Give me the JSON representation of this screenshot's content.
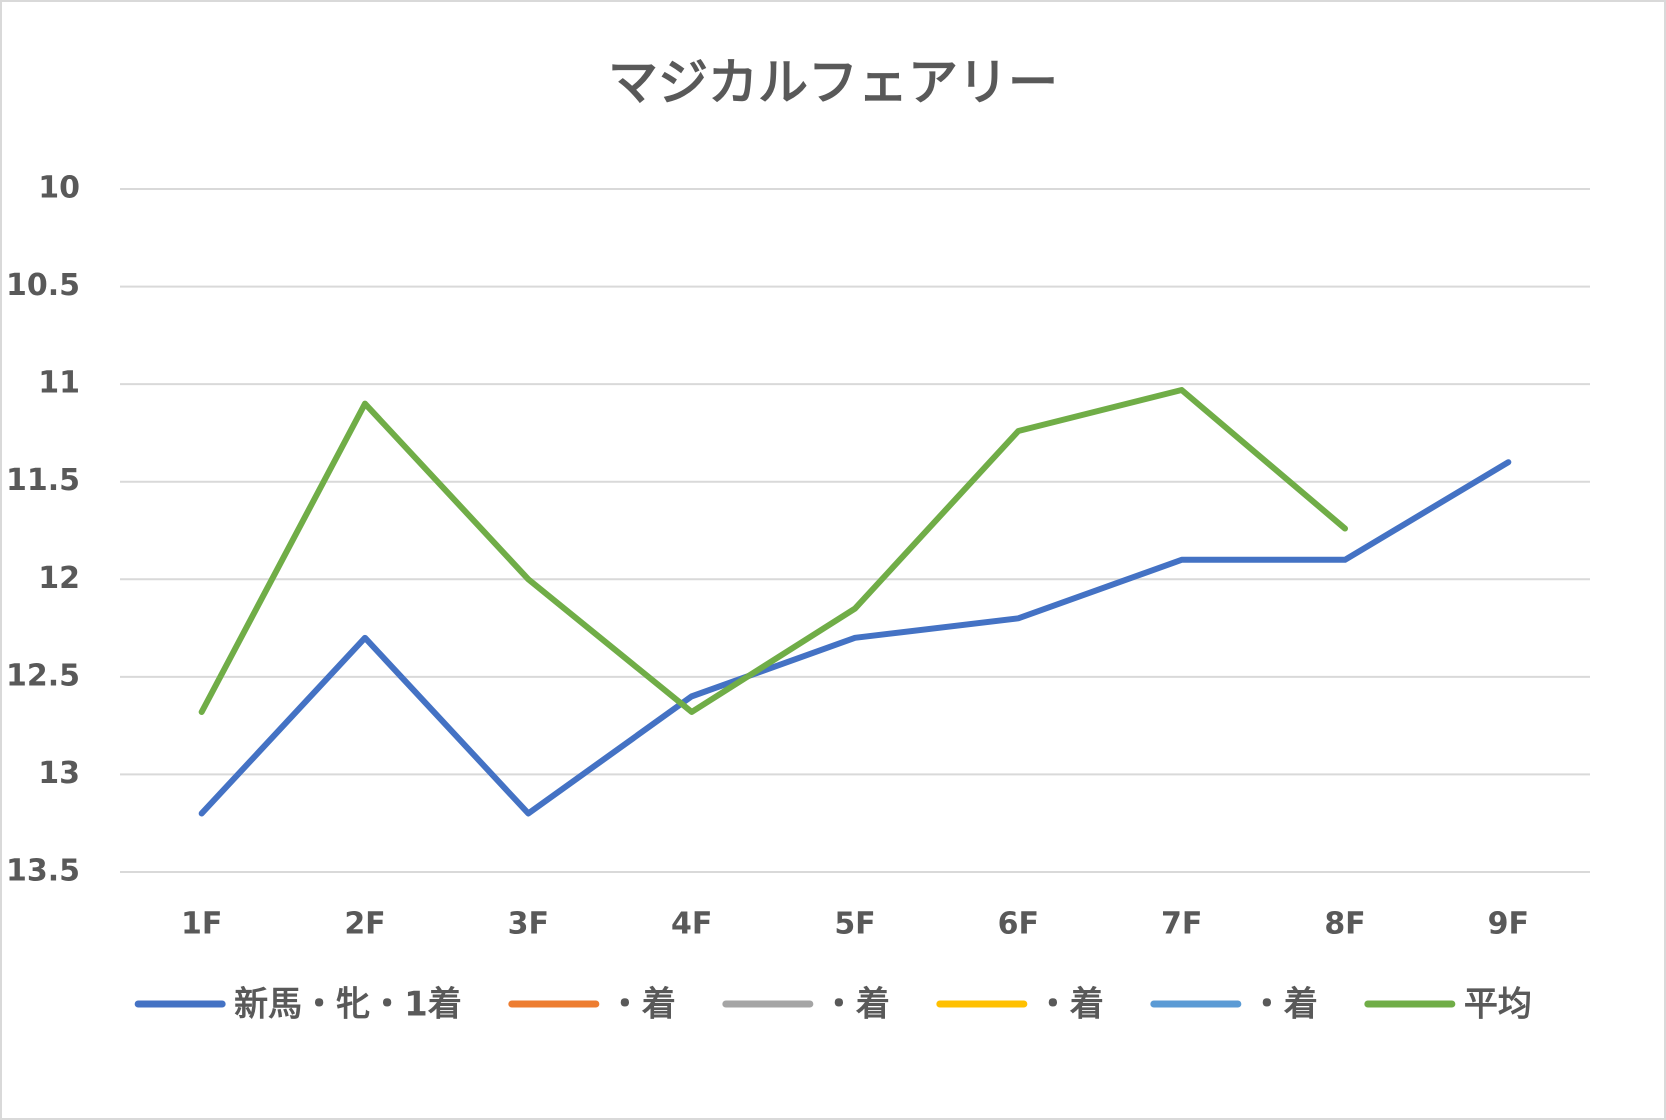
{
  "chart_data": {
    "type": "line",
    "title": "マジカルフェアリー",
    "categories": [
      "1F",
      "2F",
      "3F",
      "4F",
      "5F",
      "6F",
      "7F",
      "8F",
      "9F"
    ],
    "series": [
      {
        "name": "新馬・牝・1着",
        "color": "#4472c4",
        "values": [
          13.2,
          12.3,
          13.2,
          12.6,
          12.3,
          12.2,
          11.9,
          11.9,
          11.4
        ]
      },
      {
        "name": "・着",
        "color": "#ed7d31",
        "values": [
          null,
          null,
          null,
          null,
          null,
          null,
          null,
          null,
          null
        ]
      },
      {
        "name": "・着",
        "color": "#a5a5a5",
        "values": [
          null,
          null,
          null,
          null,
          null,
          null,
          null,
          null,
          null
        ]
      },
      {
        "name": "・着",
        "color": "#ffc000",
        "values": [
          null,
          null,
          null,
          null,
          null,
          null,
          null,
          null,
          null
        ]
      },
      {
        "name": "・着",
        "color": "#5b9bd5",
        "values": [
          null,
          null,
          null,
          null,
          null,
          null,
          null,
          null,
          null
        ]
      },
      {
        "name": "平均",
        "color": "#70ad47",
        "values": [
          12.68,
          11.1,
          12.0,
          12.68,
          12.15,
          11.24,
          11.03,
          11.74,
          null
        ]
      }
    ],
    "ylim": [
      10,
      13.5
    ],
    "yticks": [
      10,
      10.5,
      11,
      11.5,
      12,
      12.5,
      13,
      13.5
    ],
    "y_inverted": true,
    "grid": true,
    "legend": "bottom"
  }
}
